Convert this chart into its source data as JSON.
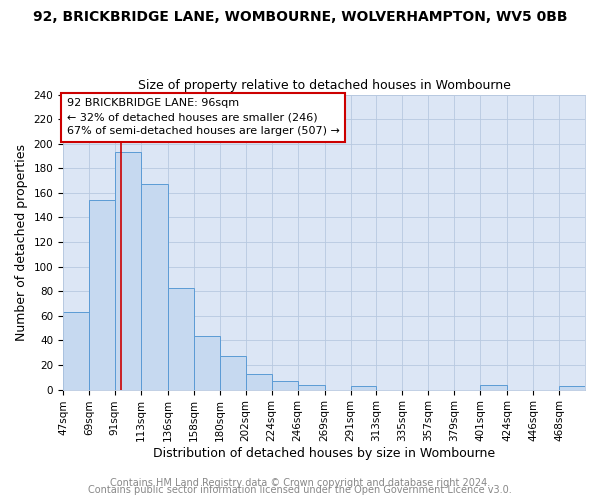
{
  "title": "92, BRICKBRIDGE LANE, WOMBOURNE, WOLVERHAMPTON, WV5 0BB",
  "subtitle": "Size of property relative to detached houses in Wombourne",
  "xlabel": "Distribution of detached houses by size in Wombourne",
  "ylabel": "Number of detached properties",
  "footer_line1": "Contains HM Land Registry data © Crown copyright and database right 2024.",
  "footer_line2": "Contains public sector information licensed under the Open Government Licence v3.0.",
  "annotation_title": "92 BRICKBRIDGE LANE: 96sqm",
  "annotation_line1": "← 32% of detached houses are smaller (246)",
  "annotation_line2": "67% of semi-detached houses are larger (507) →",
  "bar_edges": [
    47,
    69,
    91,
    113,
    136,
    158,
    180,
    202,
    224,
    246,
    269,
    291,
    313,
    335,
    357,
    379,
    401,
    424,
    446,
    468,
    490
  ],
  "bar_heights": [
    63,
    154,
    193,
    167,
    83,
    44,
    27,
    13,
    7,
    4,
    0,
    3,
    0,
    0,
    0,
    0,
    4,
    0,
    0,
    3
  ],
  "bar_color": "#c6d9f0",
  "bar_edge_color": "#5b9bd5",
  "vline_x": 96,
  "vline_color": "#cc0000",
  "ylim": [
    0,
    240
  ],
  "yticks": [
    0,
    20,
    40,
    60,
    80,
    100,
    120,
    140,
    160,
    180,
    200,
    220,
    240
  ],
  "fig_bg_color": "#ffffff",
  "plot_bg_color": "#dce6f5",
  "grid_color": "#b8c9e0",
  "title_fontsize": 10,
  "subtitle_fontsize": 9,
  "axis_label_fontsize": 9,
  "tick_label_fontsize": 7.5,
  "annotation_fontsize": 8,
  "footer_fontsize": 7,
  "footer_color": "#888888"
}
